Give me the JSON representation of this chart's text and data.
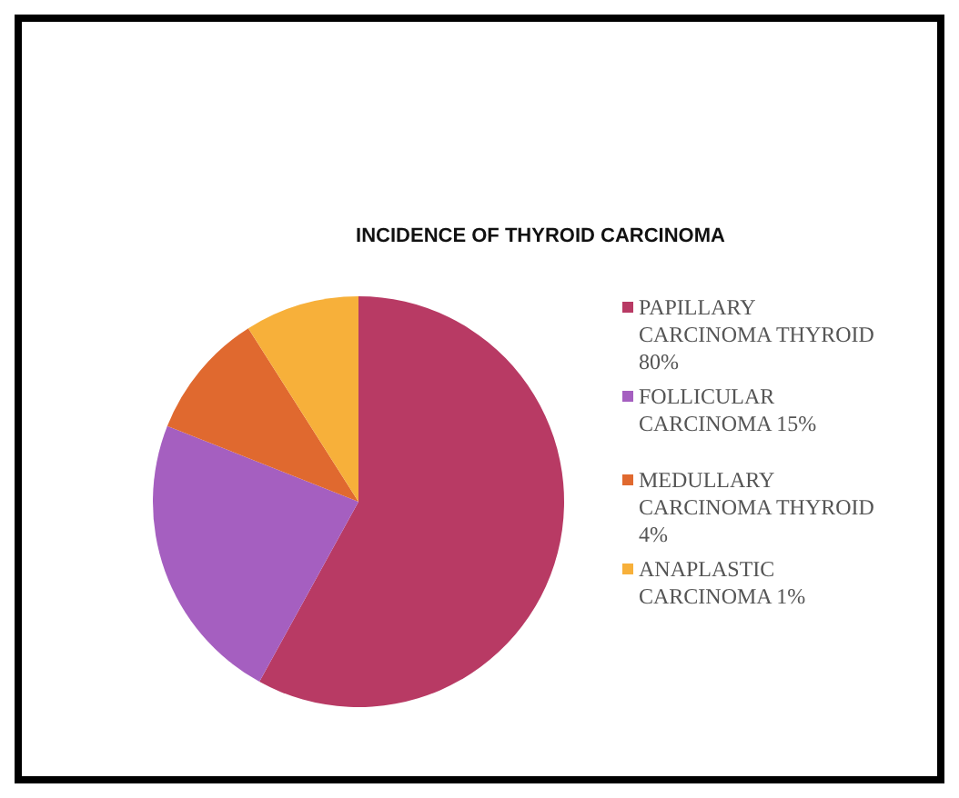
{
  "chart_data": {
    "type": "pie",
    "title": "INCIDENCE OF THYROID CARCINOMA",
    "categories": [
      "PAPILLARY CARCINOMA THYROID 80%",
      "FOLLICULAR CARCINOMA 15%",
      "MEDULLARY CARCINOMA THYROID 4%",
      "ANAPLASTIC CARCINOMA 1%"
    ],
    "values": [
      58,
      23,
      10,
      9
    ],
    "colors": [
      "#b83a64",
      "#a55fc0",
      "#e0692f",
      "#f7b03a"
    ],
    "legend": "right"
  }
}
